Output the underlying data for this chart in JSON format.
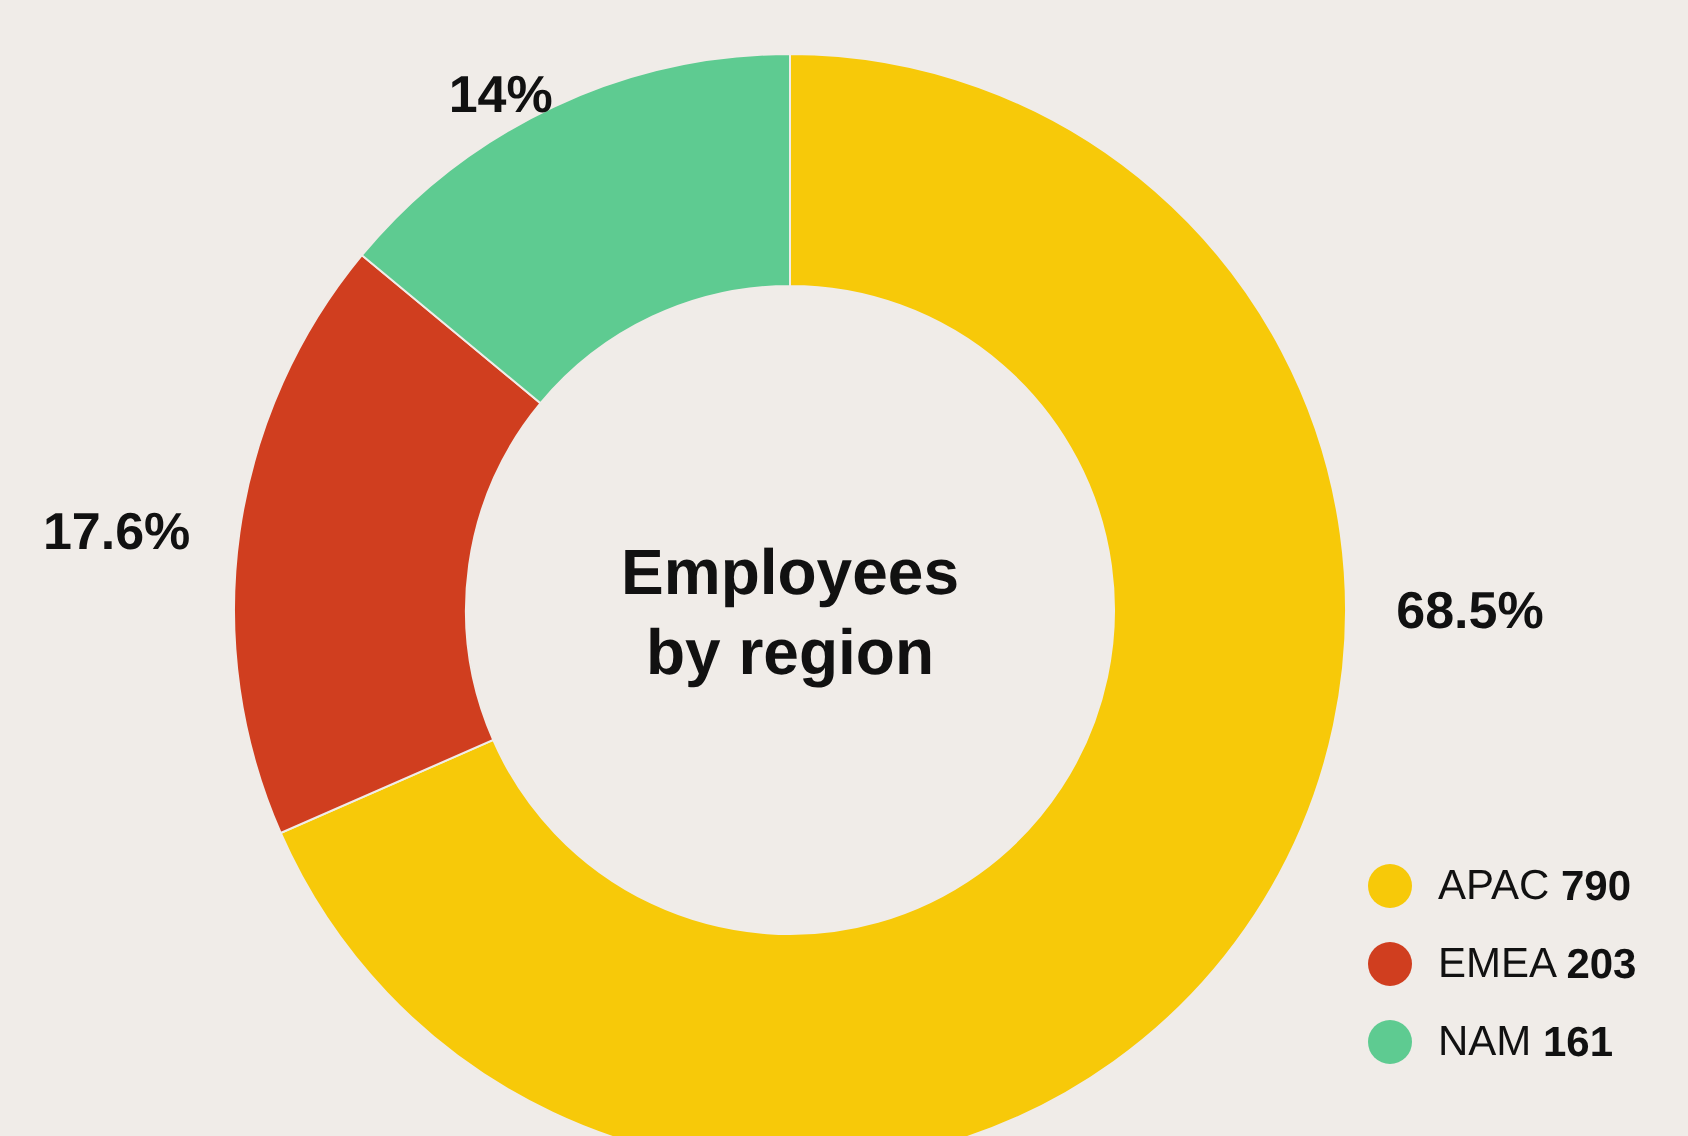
{
  "chart_data": {
    "type": "donut",
    "title": "Employees by region",
    "categories": [
      "APAC 790",
      "EMEA 203",
      "NAM 161"
    ],
    "values": [
      68.5,
      17.6,
      14
    ],
    "colors": [
      "#f7c909",
      "#d03e1f",
      "#5ecb91"
    ],
    "value_labels": [
      "68.5%",
      "17.6%",
      "14%"
    ],
    "legend": "bottom right"
  }
}
